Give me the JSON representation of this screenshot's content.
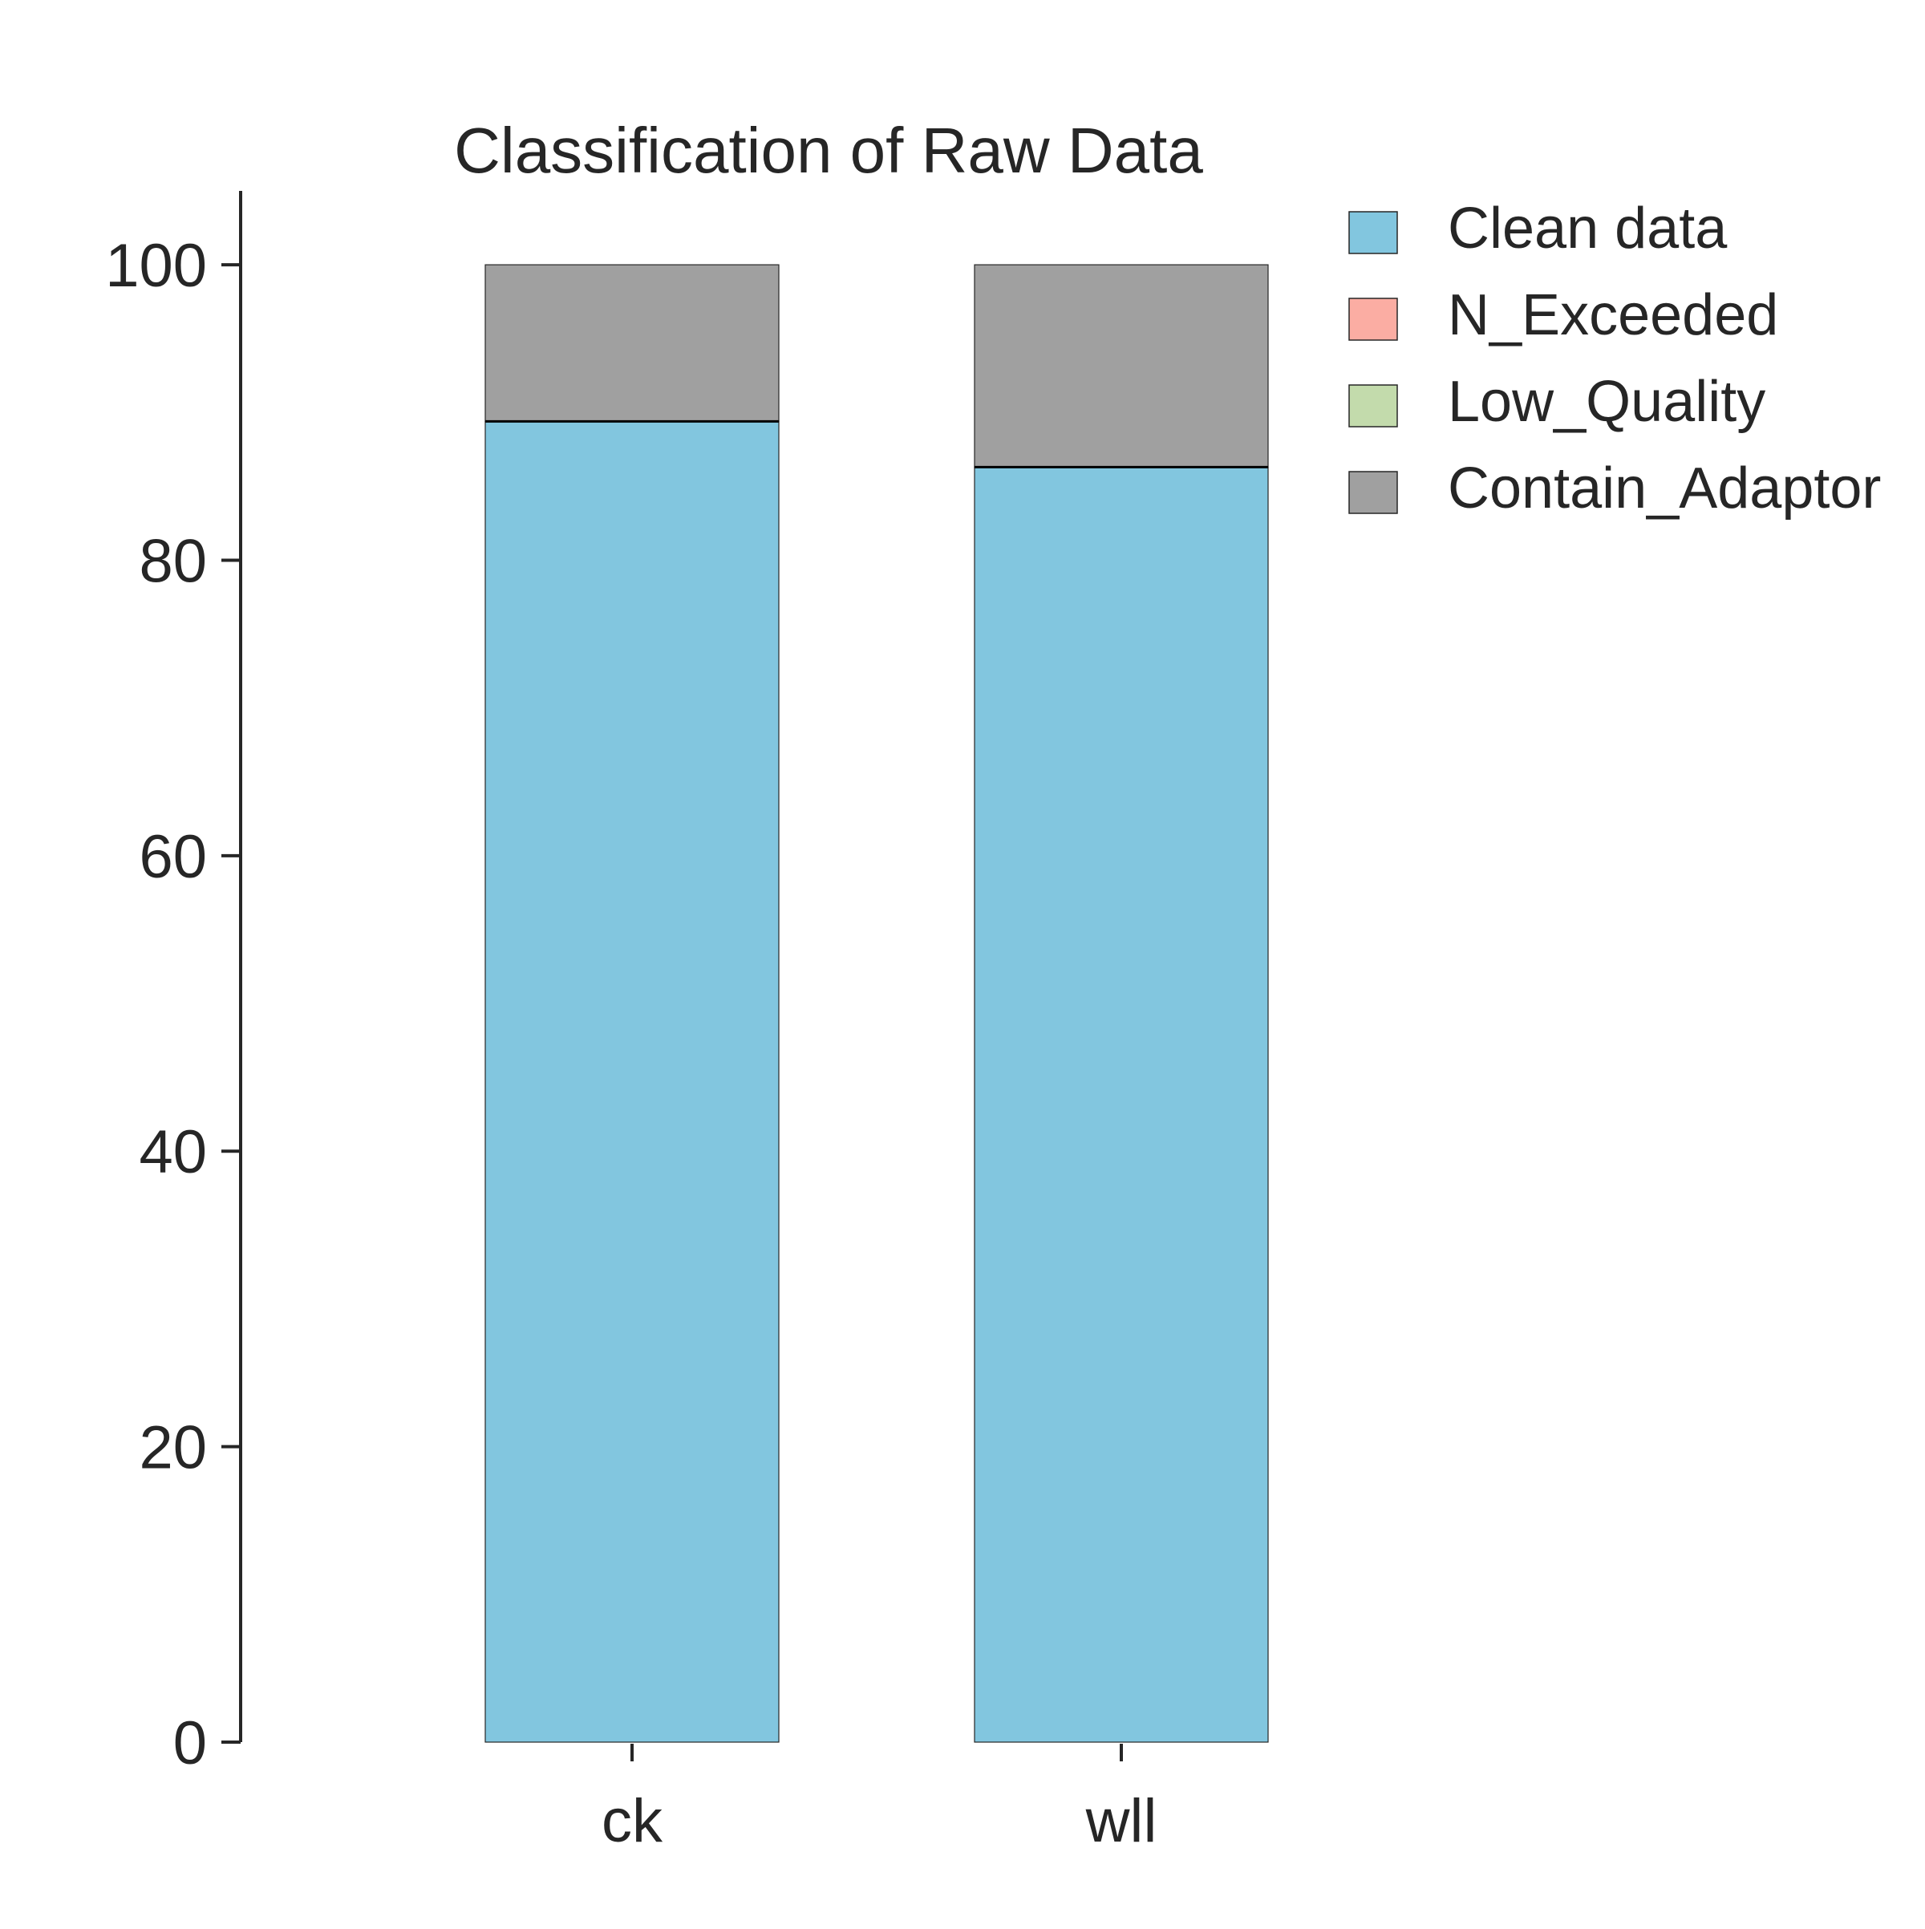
{
  "chart_data": {
    "type": "bar",
    "stacked": true,
    "title": "Classification of Raw Data",
    "xlabel": "",
    "ylabel": "",
    "categories": [
      "ck",
      "wll"
    ],
    "ylim": [
      0,
      105
    ],
    "yticks": [
      0,
      20,
      40,
      60,
      80,
      100
    ],
    "grid": false,
    "legend_position": "top-right",
    "series": [
      {
        "name": "Clean data",
        "color": "#82c6df",
        "values": [
          89.4,
          86.3
        ]
      },
      {
        "name": "N_Exceeded",
        "color": "#fbada3",
        "values": [
          0,
          0
        ]
      },
      {
        "name": "Low_Quality",
        "color": "#c3dbac",
        "values": [
          0,
          0
        ]
      },
      {
        "name": "Contain_Adaptor",
        "color": "#a0a0a0",
        "values": [
          10.6,
          13.7
        ]
      }
    ]
  }
}
